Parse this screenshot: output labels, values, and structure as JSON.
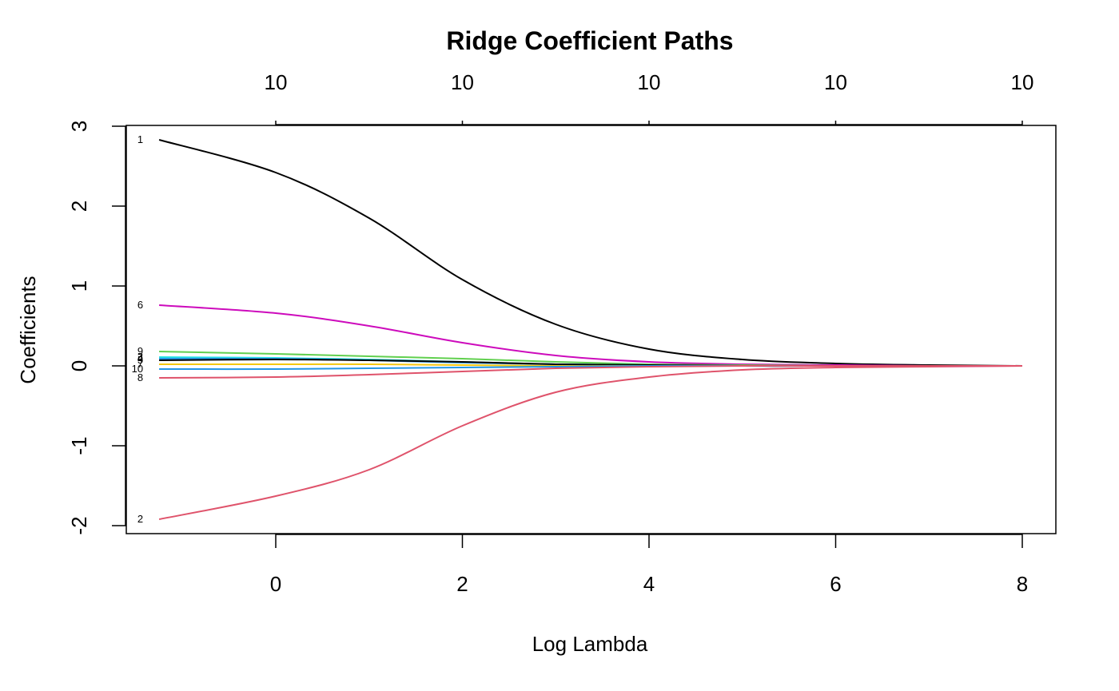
{
  "chart_data": {
    "type": "line",
    "title": "Ridge Coefficient Paths",
    "xlabel": "Log Lambda",
    "ylabel": "Coefficients",
    "xlim": [
      -1.6,
      8.3
    ],
    "ylim": [
      -2.1,
      3.0
    ],
    "x_ticks": [
      0,
      2,
      4,
      6,
      8
    ],
    "y_ticks": [
      -2,
      -1,
      0,
      1,
      2,
      3
    ],
    "top_axis_ticks_x": [
      0,
      2,
      4,
      6,
      8
    ],
    "top_axis_labels": [
      "10",
      "10",
      "10",
      "10",
      "10"
    ],
    "grid": false,
    "legend": "none",
    "x": [
      -1.25,
      0,
      1,
      2,
      3,
      4,
      5,
      6,
      7,
      8
    ],
    "series": [
      {
        "label": "1",
        "color": "#000000",
        "values": [
          2.83,
          2.42,
          1.85,
          1.08,
          0.52,
          0.21,
          0.08,
          0.03,
          0.01,
          0.0
        ]
      },
      {
        "label": "2",
        "color": "#DF536B",
        "values": [
          -1.92,
          -1.63,
          -1.3,
          -0.75,
          -0.33,
          -0.14,
          -0.05,
          -0.02,
          -0.01,
          0.0
        ]
      },
      {
        "label": "6",
        "color": "#CD0BBC",
        "values": [
          0.76,
          0.66,
          0.5,
          0.29,
          0.13,
          0.05,
          0.02,
          0.01,
          0.0,
          0.0
        ]
      },
      {
        "label": "9",
        "color": "#61D04F",
        "values": [
          0.18,
          0.15,
          0.12,
          0.09,
          0.05,
          0.02,
          0.01,
          0.0,
          0.0,
          0.0
        ]
      },
      {
        "label": "3",
        "color": "#28E2E5",
        "values": [
          0.11,
          0.1,
          0.08,
          0.05,
          0.02,
          0.01,
          0.0,
          0.0,
          0.0,
          0.0
        ]
      },
      {
        "label": "4",
        "color": "#2297E6",
        "values": [
          0.09,
          0.09,
          0.07,
          0.04,
          0.02,
          0.01,
          0.0,
          0.0,
          0.0,
          0.0
        ]
      },
      {
        "label": "5",
        "color": "#000000",
        "values": [
          0.07,
          0.08,
          0.07,
          0.05,
          0.02,
          0.01,
          0.0,
          0.0,
          0.0,
          0.0
        ]
      },
      {
        "label": "7",
        "color": "#F5C710",
        "values": [
          0.02,
          0.02,
          0.02,
          0.01,
          0.0,
          0.0,
          0.0,
          0.0,
          0.0,
          0.0
        ]
      },
      {
        "label": "10",
        "color": "#2297E6",
        "values": [
          -0.04,
          -0.04,
          -0.03,
          -0.02,
          -0.01,
          0.0,
          0.0,
          0.0,
          0.0,
          0.0
        ]
      },
      {
        "label": "8",
        "color": "#DF536B",
        "values": [
          -0.15,
          -0.14,
          -0.11,
          -0.07,
          -0.03,
          -0.01,
          0.0,
          0.0,
          0.0,
          0.0
        ]
      }
    ]
  }
}
